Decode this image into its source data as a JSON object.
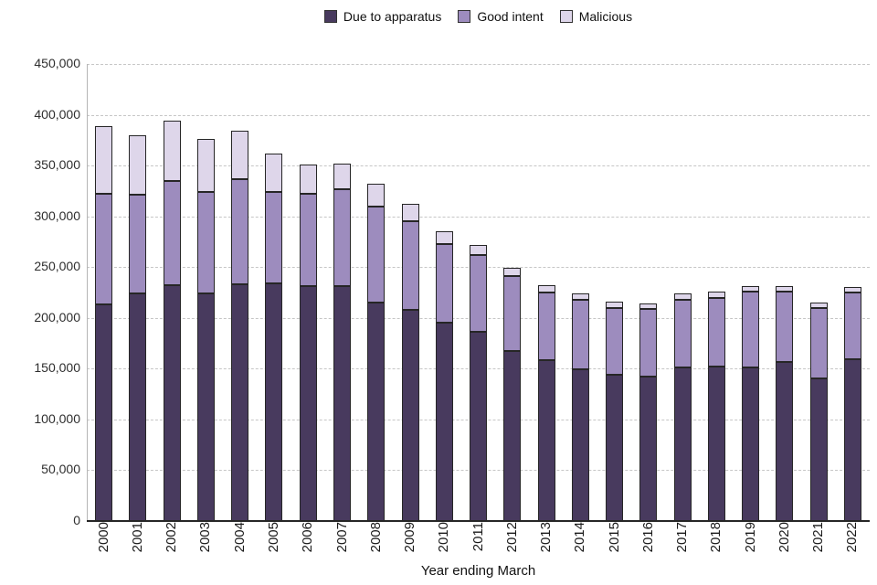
{
  "chart_data": {
    "type": "bar",
    "stacked": true,
    "title": "",
    "xlabel": "Year ending March",
    "ylabel": "",
    "ylim": [
      0,
      450000
    ],
    "ytick_step": 50000,
    "grid": "horizontal-dashed",
    "legend_position": "top-center",
    "categories": [
      "2000",
      "2001",
      "2002",
      "2003",
      "2004",
      "2005",
      "2006",
      "2007",
      "2008",
      "2009",
      "2010",
      "2011",
      "2012",
      "2013",
      "2014",
      "2015",
      "2016",
      "2017",
      "2018",
      "2019",
      "2020",
      "2021",
      "2022"
    ],
    "series": [
      {
        "name": "Due to apparatus",
        "color": "#483a5e",
        "values": [
          213000,
          224000,
          232000,
          224000,
          233000,
          234000,
          231000,
          231000,
          215000,
          208000,
          195000,
          186000,
          167000,
          158000,
          149000,
          144000,
          142000,
          151000,
          152000,
          151000,
          157000,
          140000,
          159000
        ]
      },
      {
        "name": "Good intent",
        "color": "#9d8cbe",
        "values": [
          109000,
          97000,
          103000,
          100000,
          104000,
          90000,
          91000,
          96000,
          95000,
          87000,
          78000,
          76000,
          74000,
          67000,
          69000,
          66000,
          67000,
          67000,
          68000,
          75000,
          69000,
          70000,
          66000
        ]
      },
      {
        "name": "Malicious",
        "color": "#ded6ea",
        "values": [
          67000,
          59000,
          59000,
          52000,
          47000,
          38000,
          29000,
          25000,
          22000,
          17000,
          12000,
          10000,
          8000,
          7000,
          6000,
          6000,
          5000,
          6000,
          6000,
          5000,
          5000,
          5000,
          5000
        ]
      }
    ],
    "ytick_labels": [
      "0",
      "50,000",
      "100,000",
      "150,000",
      "200,000",
      "250,000",
      "300,000",
      "350,000",
      "400,000",
      "450,000"
    ]
  }
}
